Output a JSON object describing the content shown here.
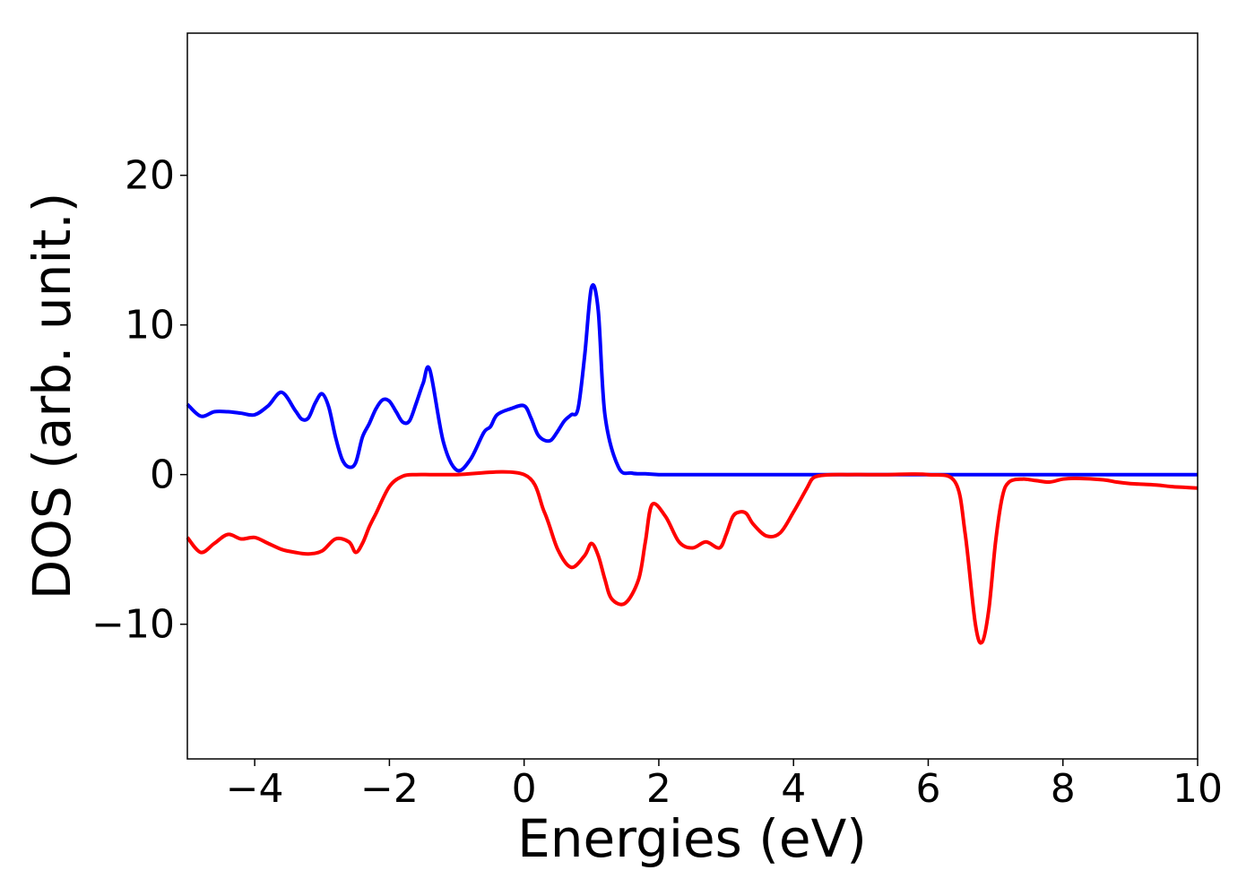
{
  "chart_data": {
    "type": "line",
    "title": "",
    "xlabel": "Energies (eV)",
    "ylabel": "DOS (arb. unit.)",
    "xlim": [
      -5,
      10
    ],
    "ylim": [
      -19,
      29.5
    ],
    "xticks": [
      -4,
      -2,
      0,
      2,
      4,
      6,
      8,
      10
    ],
    "yticks": [
      -10,
      0,
      10,
      20
    ],
    "xtick_labels": [
      "−4",
      "−2",
      "0",
      "2",
      "4",
      "6",
      "8",
      "10"
    ],
    "ytick_labels": [
      "−10",
      "0",
      "10",
      "20"
    ],
    "grid": false,
    "legend": "none",
    "series": [
      {
        "color": "#0000ff",
        "x": [
          -5.0,
          -4.8,
          -4.6,
          -4.4,
          -4.2,
          -4.0,
          -3.8,
          -3.6,
          -3.4,
          -3.3,
          -3.2,
          -3.1,
          -3.0,
          -2.9,
          -2.8,
          -2.7,
          -2.6,
          -2.5,
          -2.4,
          -2.3,
          -2.2,
          -2.1,
          -2.0,
          -1.9,
          -1.8,
          -1.7,
          -1.6,
          -1.5,
          -1.4,
          -1.2,
          -1.0,
          -0.8,
          -0.6,
          -0.5,
          -0.4,
          -0.2,
          0.0,
          0.1,
          0.2,
          0.3,
          0.4,
          0.5,
          0.6,
          0.7,
          0.8,
          0.9,
          1.0,
          1.1,
          1.2,
          1.4,
          1.6,
          1.8,
          2.0,
          2.1,
          2.2,
          2.3,
          2.4,
          2.5,
          2.7,
          2.9,
          3.1,
          3.3,
          3.4,
          3.5,
          3.6,
          3.65,
          3.7,
          3.8,
          3.9,
          4.0,
          4.1,
          4.2,
          4.5,
          5.0,
          5.5,
          6.0,
          6.5,
          6.8,
          7.0,
          7.2,
          7.4,
          7.6,
          7.8,
          8.0,
          8.4,
          8.7,
          8.9,
          9.0,
          9.2,
          9.4,
          9.6,
          9.8,
          10.0
        ],
        "y": [
          4.7,
          3.9,
          4.2,
          4.2,
          4.1,
          4.0,
          4.6,
          5.5,
          4.3,
          3.7,
          3.8,
          4.8,
          5.4,
          4.5,
          2.5,
          1.0,
          0.5,
          0.8,
          2.5,
          3.4,
          4.4,
          5.0,
          4.9,
          4.2,
          3.5,
          3.6,
          4.8,
          6.1,
          7.0,
          2.2,
          0.3,
          1.0,
          2.8,
          3.2,
          4.0,
          4.4,
          4.6,
          3.8,
          2.7,
          2.3,
          2.3,
          2.9,
          3.6,
          4.0,
          4.4,
          8.0,
          12.5,
          11.0,
          4.0,
          0.5,
          0.1,
          0.05,
          0.0,
          0.0,
          0.0,
          0.0,
          0.0,
          0.0,
          0.0,
          0.0,
          0.0,
          0.0,
          0.0,
          0.0,
          0.0,
          0.0,
          0.0,
          0.0,
          0.0,
          0.0,
          0.0,
          0.0,
          0.0,
          0.0,
          0.0,
          0.0,
          0.0,
          0.0,
          0.0,
          0.0,
          0.0,
          0.0,
          0.0,
          0.0,
          0.0,
          0.0,
          0.0,
          0.0,
          0.0,
          0.0,
          0.0,
          0.0,
          0.0
        ]
      },
      {
        "color": "#ff0000",
        "x": [
          -5.0,
          -4.8,
          -4.6,
          -4.4,
          -4.2,
          -4.0,
          -3.8,
          -3.6,
          -3.4,
          -3.2,
          -3.0,
          -2.8,
          -2.6,
          -2.5,
          -2.4,
          -2.3,
          -2.2,
          -2.0,
          -1.8,
          -1.6,
          -1.4,
          -1.2,
          -1.0,
          0.0,
          0.3,
          0.5,
          0.7,
          0.9,
          1.0,
          1.1,
          1.2,
          1.3,
          1.5,
          1.7,
          1.8,
          1.9,
          2.1,
          2.3,
          2.5,
          2.7,
          2.9,
          3.0,
          3.1,
          3.2,
          3.3,
          3.4,
          3.6,
          3.8,
          4.0,
          4.2,
          4.3,
          4.5,
          4.8,
          5.1,
          5.4,
          6.0,
          6.4,
          6.55,
          6.7,
          6.8,
          6.9,
          7.0,
          7.1,
          7.2,
          7.4,
          7.6,
          7.8,
          8.0,
          8.2,
          8.6,
          8.8,
          9.0,
          9.2,
          9.4,
          9.6,
          9.8,
          10.0
        ],
        "y": [
          -4.2,
          -5.2,
          -4.6,
          -4.0,
          -4.3,
          -4.2,
          -4.6,
          -5.0,
          -5.2,
          -5.3,
          -5.1,
          -4.3,
          -4.5,
          -5.2,
          -4.6,
          -3.5,
          -2.6,
          -0.8,
          -0.1,
          0.0,
          0.0,
          0.0,
          0.0,
          0.0,
          -2.5,
          -5.0,
          -6.2,
          -5.4,
          -4.6,
          -5.4,
          -7.0,
          -8.3,
          -8.6,
          -7.0,
          -4.5,
          -2.0,
          -2.8,
          -4.5,
          -4.9,
          -4.5,
          -4.9,
          -4.0,
          -2.8,
          -2.5,
          -2.6,
          -3.3,
          -4.1,
          -3.9,
          -2.5,
          -0.9,
          -0.2,
          -0.02,
          0.0,
          0.0,
          0.0,
          0.0,
          -0.5,
          -4.0,
          -10.0,
          -11.2,
          -9.0,
          -4.5,
          -1.5,
          -0.5,
          -0.3,
          -0.4,
          -0.5,
          -0.3,
          -0.25,
          -0.35,
          -0.5,
          -0.6,
          -0.65,
          -0.7,
          -0.8,
          -0.85,
          -0.9
        ]
      }
    ]
  }
}
